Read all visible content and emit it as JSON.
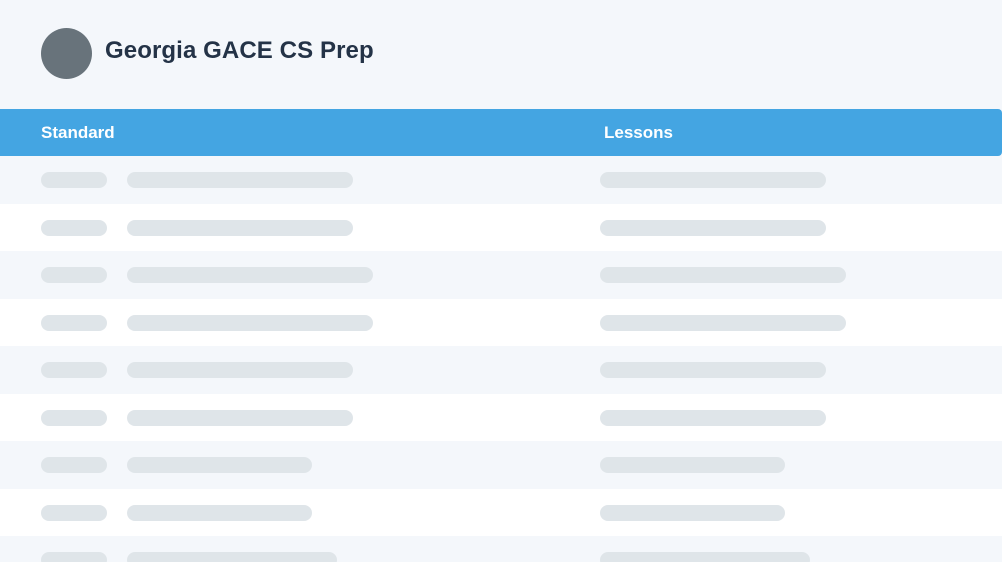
{
  "header": {
    "title": "Georgia GACE CS Prep"
  },
  "table": {
    "columns": [
      "Standard",
      "Lessons"
    ],
    "rows": [
      {
        "state": "loading"
      },
      {
        "state": "loading"
      },
      {
        "state": "loading"
      },
      {
        "state": "loading"
      },
      {
        "state": "loading"
      },
      {
        "state": "loading"
      },
      {
        "state": "loading"
      },
      {
        "state": "loading"
      },
      {
        "state": "loading"
      }
    ]
  },
  "colors": {
    "header_bar": "#44a5e2",
    "title_text": "#243347",
    "avatar": "#68737b",
    "skeleton": "#dfe5e9",
    "row_alt": "#f4f7fb",
    "row": "#ffffff"
  }
}
